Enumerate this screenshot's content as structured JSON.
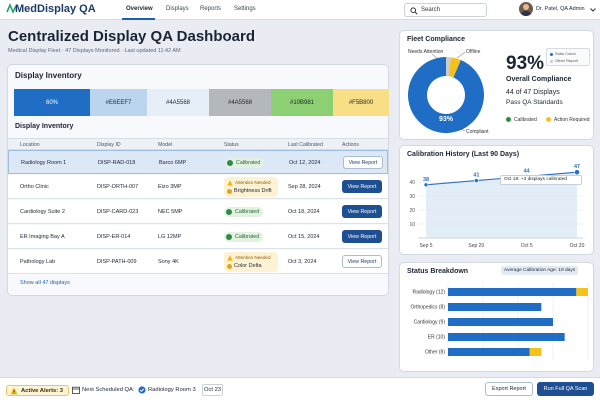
{
  "nav": {
    "app_title": "MedDisplay QA",
    "tabs": [
      "Overview",
      "Displays",
      "Reports",
      "Settings"
    ],
    "search_placeholder": "Search",
    "user": "Dr. Patel, QA Admin"
  },
  "page": {
    "title": "Centralized Display QA Dashboard",
    "subtitle": "Medical Display Fleet · 47 Displays Monitored · Last updated 11:42 AM"
  },
  "inventory": {
    "title": "Display Inventory",
    "subtitle": "Display Inventory",
    "swatches": [
      {
        "label": "60%",
        "bg": "#1f6dc4",
        "fg": "#ffffff"
      },
      {
        "label": "#E6EEF7",
        "bg": "#bcd5ef",
        "fg": "#1c2433"
      },
      {
        "label": "#4A5568",
        "bg": "#e6eef7",
        "fg": "#1c2433"
      },
      {
        "label": "#4A5568",
        "bg": "#b4b8bd",
        "fg": "#1c2433"
      },
      {
        "label": "#10B981",
        "bg": "#8dcf73",
        "fg": "#1c2433"
      },
      {
        "label": "#F5B800",
        "bg": "#f8df86",
        "fg": "#1c2433"
      }
    ],
    "columns": [
      "Location",
      "Display ID",
      "Model",
      "Status",
      "Last Calibrated",
      "Actions"
    ],
    "rows": [
      {
        "location": "Radiology Room 1",
        "id": "DISP-RAD-018",
        "model": "Barco 6MP",
        "status": "Calibrated",
        "date": "Oct 12, 2024",
        "action": "View Report",
        "warn": false,
        "selected": true
      },
      {
        "location": "Ortho Clinic",
        "id": "DISP-ORTH-007",
        "model": "Eizo 3MP",
        "status_label": "Attention Needed",
        "status": "Brightness Drift",
        "date": "Sep 28, 2024",
        "action": "View Report",
        "warn": true,
        "selected": false
      },
      {
        "location": "Cardiology Suite 2",
        "id": "DISP-CARD-023",
        "model": "NEC 5MP",
        "status": "Calibrated",
        "date": "Oct 18, 2024",
        "action": "View Report",
        "warn": false,
        "selected": false
      },
      {
        "location": "ER Imaging Bay A",
        "id": "DISP-ER-014",
        "model": "LG 12MP",
        "status": "Calibrated",
        "date": "Oct 15, 2024",
        "action": "View Report",
        "warn": false,
        "selected": false
      },
      {
        "location": "Pathology Lab",
        "id": "DISP-PATH-009",
        "model": "Sony 4K",
        "status_label": "Attention Needed",
        "status": "Color Delta",
        "date": "Oct 3, 2024",
        "action": "View Report",
        "warn": true,
        "selected": false
      }
    ],
    "show_all": "Show all 47 displays"
  },
  "compliance": {
    "title": "Fleet Compliance",
    "percent": "93%",
    "overall": "Overall Compliance",
    "count_line1": "44 of 47 Displays",
    "count_line2": "Pass QA Standards",
    "donut_center": "93%",
    "label_attention": "Needs Attention",
    "label_offline": "Offline",
    "label_compliant": "Compliant",
    "legend_top": [
      "Sutio Colon",
      "Other Report"
    ],
    "legend_bottom": [
      "Calibrated",
      "Action Required"
    ],
    "colors": {
      "compliant": "#1f6dc4",
      "attention": "#f5c21b",
      "offline": "#c9ccd1"
    }
  },
  "history": {
    "title": "Calibration History (Last 90 Days)",
    "tooltip": "Oct 18: +3 displays calibrated"
  },
  "breakdown": {
    "title": "Status Breakdown",
    "avg_badge": "Average Calibration Age: 19 days"
  },
  "footer": {
    "alerts": "Active Alerts: 3",
    "next_label": "Next Scheduled QA:",
    "next_value": "Radiology Room 3",
    "next_date": "Oct 23",
    "export": "Export Report",
    "run": "Run Full QA Scan"
  },
  "chart_data": [
    {
      "type": "line",
      "title": "Calibration History (Last 90 Days)",
      "x": [
        "Sep 5",
        "Sep 20",
        "Oct 5",
        "Oct 20"
      ],
      "points": [
        {
          "x": "Sep 5",
          "y": 38
        },
        {
          "x": "Sep 20",
          "y": 41
        },
        {
          "x": "Oct 5",
          "y": 44
        },
        {
          "x": "Oct 20",
          "y": 47
        }
      ],
      "xticks": [
        "Sep 5",
        "Sep 20",
        "Oct 5",
        "Oct 20"
      ],
      "yticks": [
        10,
        20,
        30,
        40
      ],
      "ylim": [
        0,
        50
      ],
      "grid": true
    },
    {
      "type": "bar",
      "title": "Status Breakdown",
      "categories": [
        "Radiology (12)",
        "Orthopedics (8)",
        "Cardiology (9)",
        "ER (10)",
        "Other (8)"
      ],
      "series": [
        {
          "name": "Calibrated",
          "values": [
            11,
            8,
            9,
            10,
            7
          ],
          "color": "#1f6dc4"
        },
        {
          "name": "Action Required",
          "values": [
            1,
            0,
            0,
            0,
            1
          ],
          "color": "#f5c21b"
        }
      ],
      "xlim": [
        0,
        12
      ],
      "grid": true
    },
    {
      "type": "pie",
      "title": "Fleet Compliance",
      "slices": [
        {
          "label": "Compliant",
          "value": 44
        },
        {
          "label": "Needs Attention",
          "value": 2
        },
        {
          "label": "Offline",
          "value": 1
        }
      ]
    }
  ]
}
